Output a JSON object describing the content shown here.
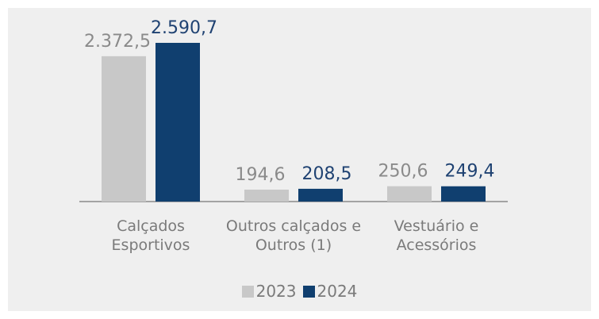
{
  "chart_data": {
    "type": "bar",
    "categories": [
      "Calçados Esportivos",
      "Outros calçados e Outros (1)",
      "Vestuário e Acessórios"
    ],
    "series": [
      {
        "name": "2023",
        "color": "#c8c8c8",
        "values": [
          2372.5,
          194.6,
          250.6
        ],
        "value_labels": [
          "2.372,5",
          "194,6",
          "250,6"
        ]
      },
      {
        "name": "2024",
        "color": "#103f6f",
        "values": [
          2590.7,
          208.5,
          249.4
        ],
        "value_labels": [
          "2.590,7",
          "208,5",
          "249,4"
        ]
      }
    ]
  }
}
